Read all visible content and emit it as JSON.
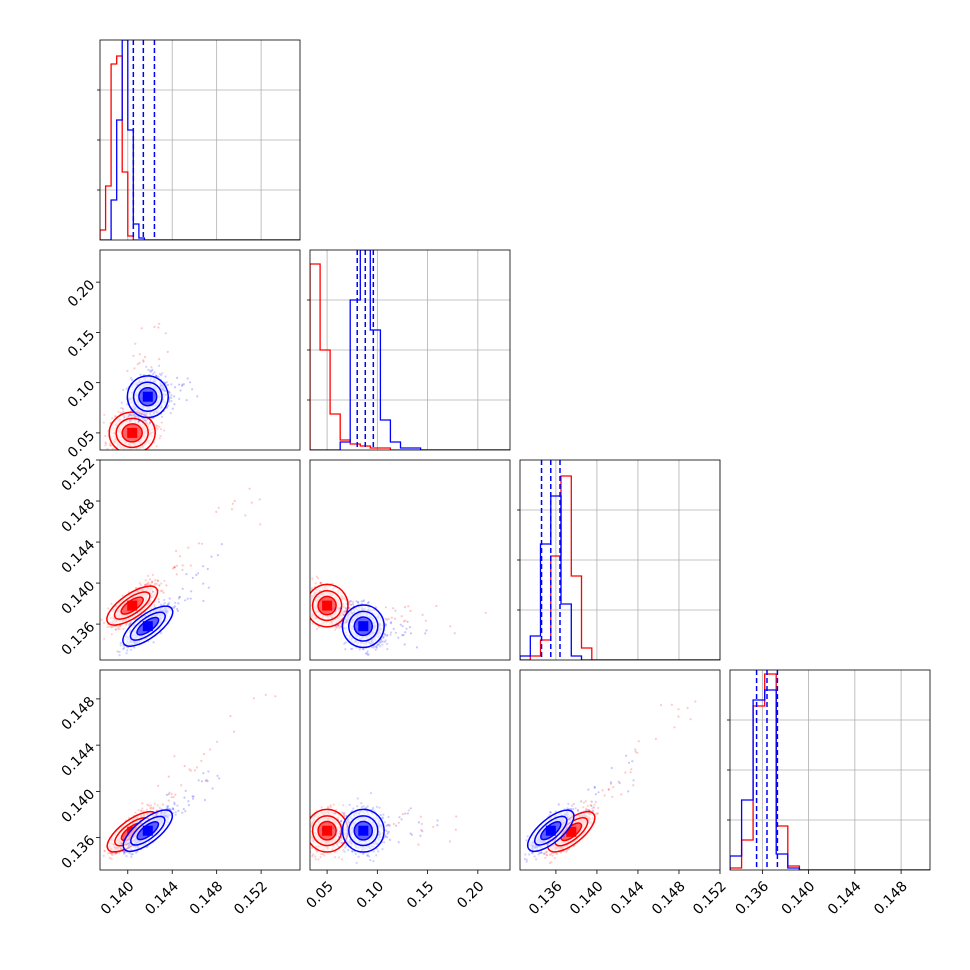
{
  "chart_data": {
    "type": "corner",
    "parameters": 4,
    "grid": true,
    "colors": {
      "red": "#ff0000",
      "blue": "#0000ff",
      "grid": "#b0b0b0"
    },
    "ranges": [
      [
        0.1375,
        0.1555
      ],
      [
        0.033,
        0.232
      ],
      [
        0.1325,
        0.152
      ],
      [
        0.1332,
        0.1505
      ]
    ],
    "tick_labels": {
      "x": [
        [
          "0.140",
          "0.144",
          "0.148",
          "0.152"
        ],
        [
          "0.05",
          "0.10",
          "0.15",
          "0.20"
        ],
        [
          "0.136",
          "0.140",
          "0.144",
          "0.148",
          "0.152"
        ],
        [
          "0.136",
          "0.140",
          "0.144",
          "0.148"
        ]
      ],
      "y": [
        [],
        [
          "0.05",
          "0.10",
          "0.15",
          "0.20"
        ],
        [
          "0.136",
          "0.140",
          "0.144",
          "0.148",
          "0.152"
        ],
        [
          "0.136",
          "0.140",
          "0.144",
          "0.148"
        ]
      ]
    },
    "marginals": [
      {
        "param": 0,
        "bins": [
          0.1375,
          0.138,
          0.1385,
          0.139,
          0.1395,
          0.14,
          0.1405,
          0.141,
          0.1415,
          0.142,
          0.1425,
          0.143,
          0.1435,
          0.144,
          0.1445
        ],
        "series": [
          {
            "color": "red",
            "counts": [
              0.05,
              0.27,
              0.88,
              0.92,
              0.34,
              0.02,
              0,
              0,
              0,
              0,
              0,
              0,
              0,
              0
            ]
          },
          {
            "color": "blue",
            "counts": [
              0,
              0,
              0.2,
              0.6,
              1.0,
              0.55,
              0.08,
              0.01,
              0,
              0,
              0,
              0,
              0,
              0
            ]
          }
        ],
        "quantiles": [
          0.1405,
          0.1414,
          0.1424
        ]
      },
      {
        "param": 1,
        "bins": [
          0.033,
          0.043,
          0.053,
          0.063,
          0.073,
          0.083,
          0.093,
          0.103,
          0.113,
          0.123,
          0.143,
          0.173
        ],
        "series": [
          {
            "color": "red",
            "counts": [
              0.93,
              0.5,
              0.18,
              0.05,
              0.03,
              0.02,
              0.01,
              0.01,
              0,
              0,
              0
            ]
          },
          {
            "color": "blue",
            "counts": [
              0,
              0,
              0,
              0.04,
              0.75,
              1.0,
              0.6,
              0.15,
              0.04,
              0.01,
              0
            ]
          }
        ],
        "quantiles": [
          0.08,
          0.088,
          0.096
        ]
      },
      {
        "param": 2,
        "bins": [
          0.1325,
          0.1335,
          0.1345,
          0.1355,
          0.1365,
          0.1375,
          0.1385,
          0.1395,
          0.1405
        ],
        "series": [
          {
            "color": "red",
            "counts": [
              0,
              0.02,
              0.1,
              0.52,
              0.92,
              0.42,
              0.06,
              0
            ]
          },
          {
            "color": "blue",
            "counts": [
              0.02,
              0.12,
              0.58,
              0.82,
              0.28,
              0.02,
              0,
              0
            ]
          }
        ],
        "quantiles": [
          0.1346,
          0.1355,
          0.1364
        ]
      },
      {
        "param": 3,
        "bins": [
          0.1332,
          0.1342,
          0.1352,
          0.1362,
          0.1372,
          0.1382,
          0.1392,
          0.1402
        ],
        "series": [
          {
            "color": "red",
            "counts": [
              0.01,
              0.15,
              0.82,
              0.98,
              0.22,
              0.02,
              0
            ]
          },
          {
            "color": "blue",
            "counts": [
              0.07,
              0.35,
              0.85,
              0.9,
              0.08,
              0.01,
              0
            ]
          }
        ],
        "quantiles": [
          0.1355,
          0.1364,
          0.1373
        ]
      }
    ],
    "scatter_2d": [
      {
        "x_param": 0,
        "y_param": 1,
        "clouds": [
          {
            "color": "red",
            "center": [
              0.1404,
              0.05
            ],
            "sd": [
              0.0009,
              0.009
            ],
            "rho": 0.1,
            "tail": [
              0.1425,
              0.16
            ]
          },
          {
            "color": "blue",
            "center": [
              0.1418,
              0.086
            ],
            "sd": [
              0.0008,
              0.009
            ],
            "rho": 0.1,
            "tail": [
              0.146,
              0.1
            ]
          }
        ]
      },
      {
        "x_param": 0,
        "y_param": 2,
        "clouds": [
          {
            "color": "red",
            "center": [
              0.1404,
              0.1378
            ],
            "sd": [
              0.0009,
              0.0009
            ],
            "rho": 0.75,
            "tail": [
              0.152,
              0.149
            ]
          },
          {
            "color": "blue",
            "center": [
              0.1418,
              0.1358
            ],
            "sd": [
              0.0009,
              0.0009
            ],
            "rho": 0.8,
            "tail": [
              0.148,
              0.142
            ]
          }
        ]
      },
      {
        "x_param": 0,
        "y_param": 3,
        "clouds": [
          {
            "color": "red",
            "center": [
              0.1404,
              0.1365
            ],
            "sd": [
              0.0009,
              0.0008
            ],
            "rho": 0.8,
            "tail": [
              0.152,
              0.148
            ]
          },
          {
            "color": "blue",
            "center": [
              0.1418,
              0.1366
            ],
            "sd": [
              0.0009,
              0.0008
            ],
            "rho": 0.85,
            "tail": [
              0.148,
              0.142
            ]
          }
        ]
      },
      {
        "x_param": 1,
        "y_param": 2,
        "clouds": [
          {
            "color": "red",
            "center": [
              0.05,
              0.1378
            ],
            "sd": [
              0.009,
              0.0009
            ],
            "rho": -0.2,
            "tail": [
              0.2,
              0.136
            ]
          },
          {
            "color": "blue",
            "center": [
              0.086,
              0.1358
            ],
            "sd": [
              0.009,
              0.0009
            ],
            "rho": -0.2,
            "tail": [
              0.15,
              0.135
            ]
          }
        ]
      },
      {
        "x_param": 1,
        "y_param": 3,
        "clouds": [
          {
            "color": "red",
            "center": [
              0.05,
              0.1366
            ],
            "sd": [
              0.009,
              0.0008
            ],
            "rho": 0.0,
            "tail": [
              0.2,
              0.137
            ]
          },
          {
            "color": "blue",
            "center": [
              0.086,
              0.1366
            ],
            "sd": [
              0.009,
              0.0008
            ],
            "rho": 0.0,
            "tail": [
              0.15,
              0.137
            ]
          }
        ]
      },
      {
        "x_param": 2,
        "y_param": 3,
        "clouds": [
          {
            "color": "red",
            "center": [
              0.1375,
              0.1365
            ],
            "sd": [
              0.0009,
              0.0008
            ],
            "rho": 0.8,
            "tail": [
              0.149,
              0.148
            ]
          },
          {
            "color": "blue",
            "center": [
              0.1355,
              0.1366
            ],
            "sd": [
              0.0009,
              0.0008
            ],
            "rho": 0.85,
            "tail": [
              0.144,
              0.143
            ]
          }
        ]
      }
    ]
  }
}
